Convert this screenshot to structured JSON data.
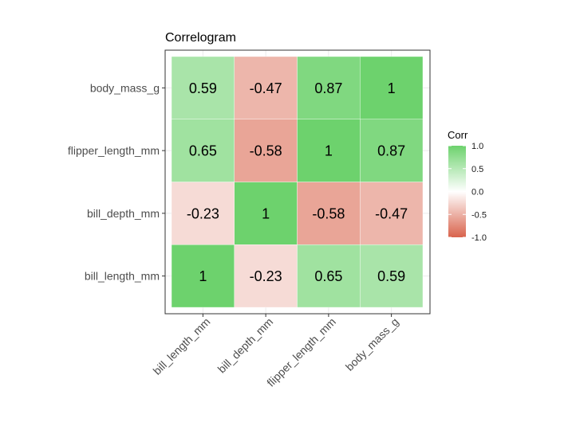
{
  "chart_data": {
    "type": "heatmap",
    "title": "Correlogram",
    "x_categories": [
      "bill_length_mm",
      "bill_depth_mm",
      "flipper_length_mm",
      "body_mass_g"
    ],
    "y_categories": [
      "bill_length_mm",
      "bill_depth_mm",
      "flipper_length_mm",
      "body_mass_g"
    ],
    "values": [
      [
        1,
        -0.23,
        0.65,
        0.59
      ],
      [
        -0.23,
        1,
        -0.58,
        -0.47
      ],
      [
        0.65,
        -0.58,
        1,
        0.87
      ],
      [
        0.59,
        -0.47,
        0.87,
        1
      ]
    ],
    "value_labels": [
      [
        "1",
        "-0.23",
        "0.65",
        "0.59"
      ],
      [
        "-0.23",
        "1",
        "-0.58",
        "-0.47"
      ],
      [
        "0.65",
        "-0.58",
        "1",
        "0.87"
      ],
      [
        "0.59",
        "-0.47",
        "0.87",
        "1"
      ]
    ],
    "legend": {
      "title": "Corr",
      "position": "right",
      "ticks": [
        1.0,
        0.5,
        0.0,
        -0.5,
        -1.0
      ],
      "tick_labels": [
        "1.0",
        "0.5",
        "0.0",
        "-0.5",
        "-1.0"
      ]
    },
    "color_scale": {
      "low": "#d9634c",
      "mid": "#ffffff",
      "high": "#6dd26d",
      "range": [
        -1,
        1
      ]
    },
    "grid": true
  }
}
